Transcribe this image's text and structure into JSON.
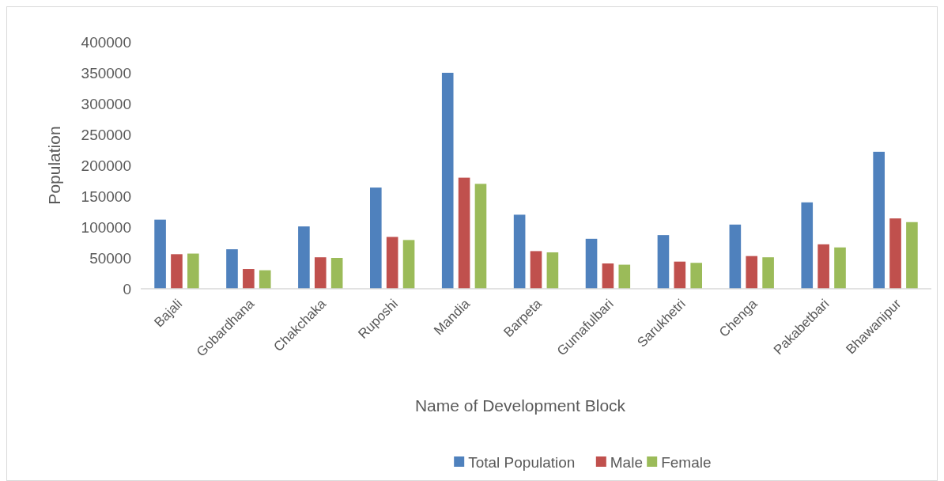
{
  "chart_data": {
    "type": "bar",
    "xlabel": "Name of Development Block",
    "ylabel": "Population",
    "categories": [
      "Bajali",
      "Gobardhana",
      "Chakchaka",
      "Ruposhi",
      "Mandia",
      "Barpeta",
      "Gumafulbari",
      "Sarukhetri",
      "Chenga",
      "Pakabetbari",
      "Bhawanipur"
    ],
    "series": [
      {
        "name": "Total Population",
        "color": "#4f81bd",
        "values": [
          112000,
          64000,
          101000,
          164000,
          350000,
          120000,
          81000,
          87000,
          104000,
          140000,
          222000
        ]
      },
      {
        "name": "Male",
        "color": "#c0504d",
        "values": [
          56000,
          32000,
          51000,
          84000,
          180000,
          61000,
          41000,
          44000,
          53000,
          72000,
          114000
        ]
      },
      {
        "name": "Female",
        "color": "#9bbb59",
        "values": [
          57000,
          30000,
          50000,
          79000,
          170000,
          59000,
          39000,
          42000,
          51000,
          67000,
          108000
        ]
      }
    ],
    "ylim": [
      0,
      400000
    ],
    "yticks": [
      0,
      50000,
      100000,
      150000,
      200000,
      250000,
      300000,
      350000,
      400000
    ],
    "grid": false,
    "legend": "bottom"
  }
}
